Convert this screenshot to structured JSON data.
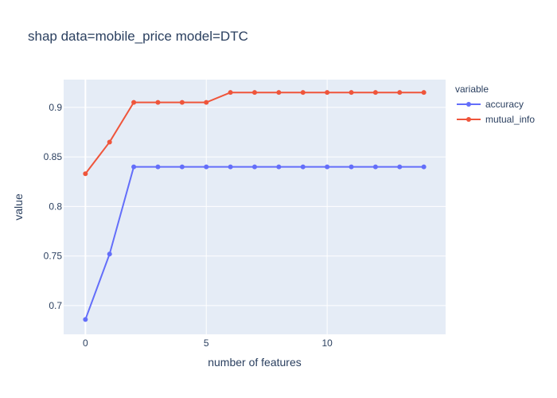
{
  "chart_data": {
    "type": "line",
    "title": "shap data=mobile_price model=DTC",
    "xlabel": "number of features",
    "ylabel": "value",
    "x": [
      0,
      1,
      2,
      3,
      4,
      5,
      6,
      7,
      8,
      9,
      10,
      11,
      12,
      13,
      14
    ],
    "xlim": [
      -0.9,
      14.9
    ],
    "ylim": [
      0.671,
      0.928
    ],
    "xticks": [
      0,
      5,
      10
    ],
    "yticks": [
      0.7,
      0.75,
      0.8,
      0.85,
      0.9
    ],
    "grid": true,
    "legend": {
      "title": "variable",
      "placement": "right"
    },
    "series": [
      {
        "name": "accuracy",
        "color": "#636efa",
        "values": [
          0.686,
          0.752,
          0.84,
          0.84,
          0.84,
          0.84,
          0.84,
          0.84,
          0.84,
          0.84,
          0.84,
          0.84,
          0.84,
          0.84,
          0.84
        ]
      },
      {
        "name": "mutual_info",
        "color": "#ef553b",
        "values": [
          0.833,
          0.865,
          0.905,
          0.905,
          0.905,
          0.905,
          0.915,
          0.915,
          0.915,
          0.915,
          0.915,
          0.915,
          0.915,
          0.915,
          0.915
        ]
      }
    ],
    "plot_bgcolor": "#e5ecf6",
    "grid_color": "#ffffff"
  }
}
